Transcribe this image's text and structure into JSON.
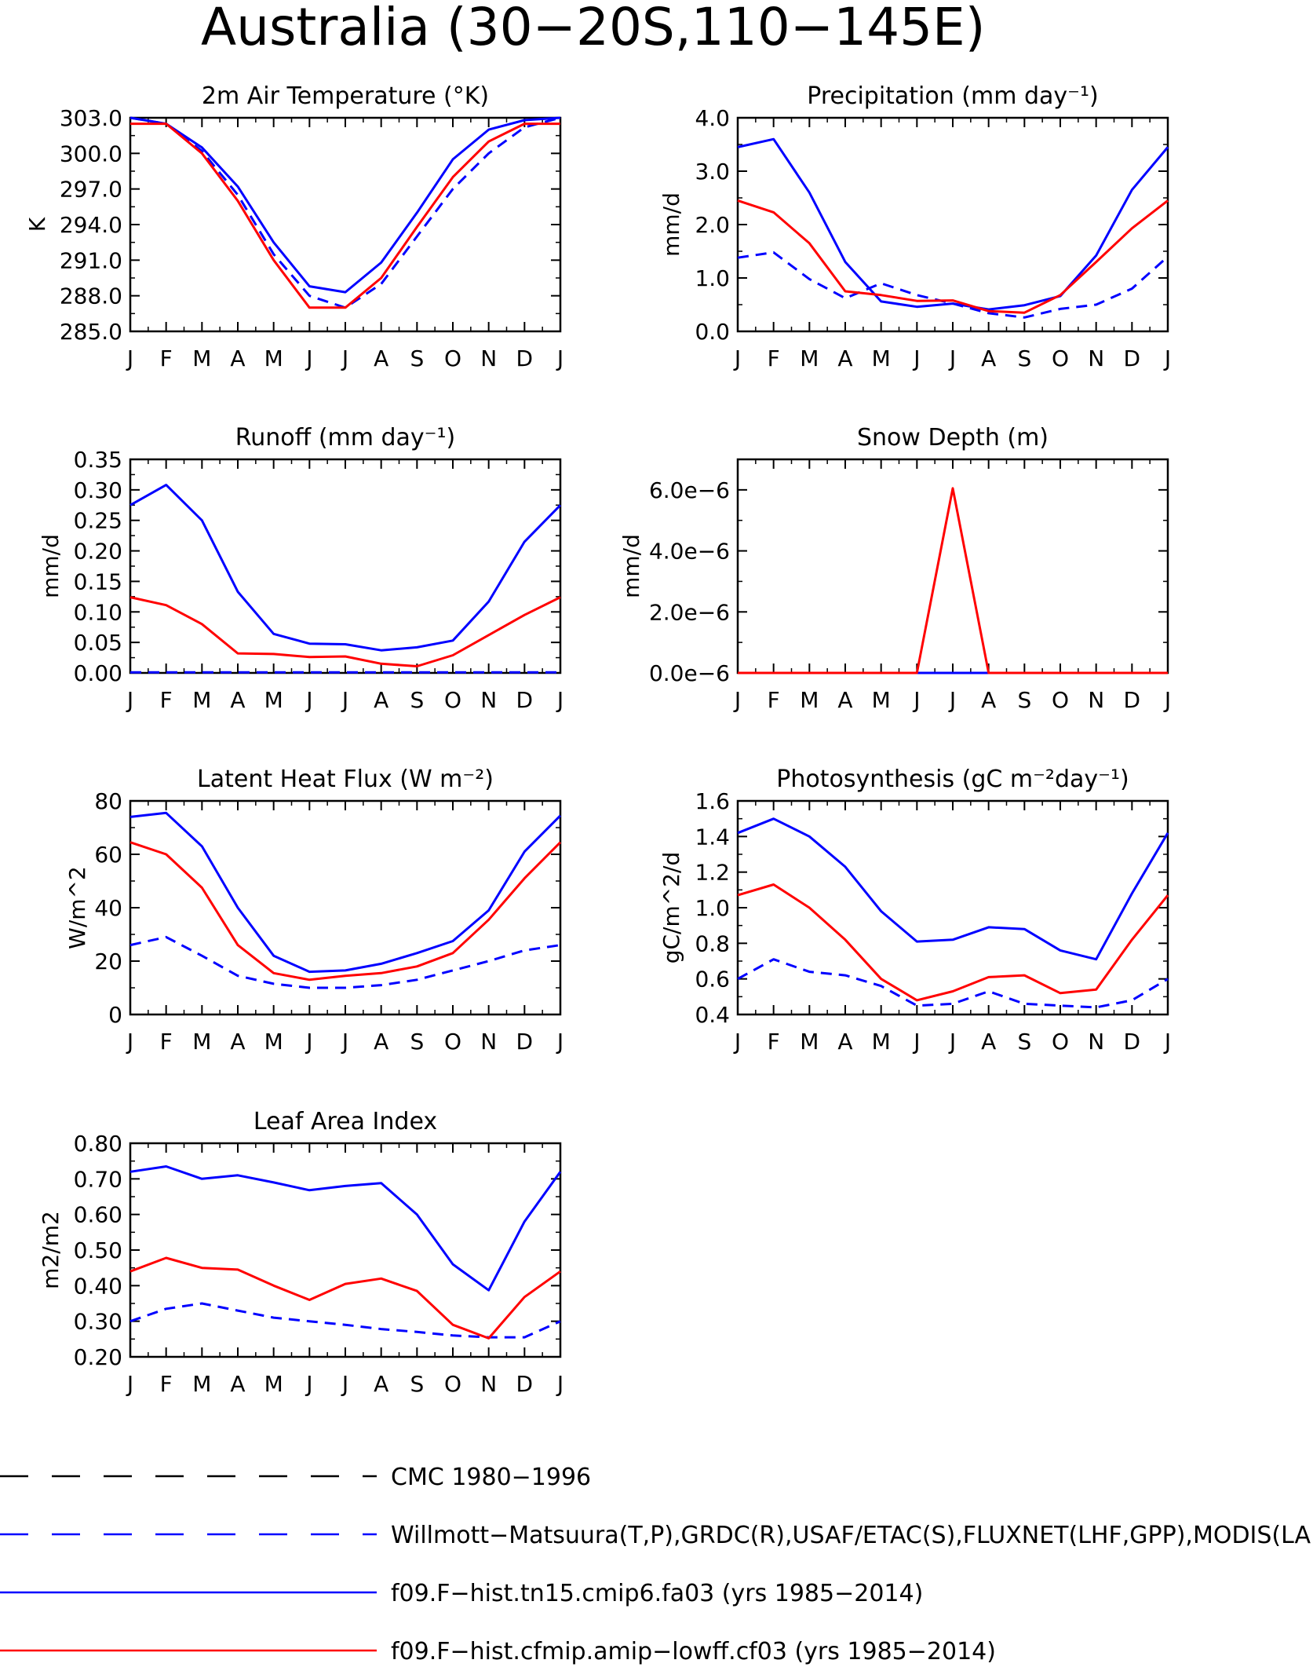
{
  "page_title": "Australia (30−20S,110−145E)",
  "months": [
    "J",
    "F",
    "M",
    "A",
    "M",
    "J",
    "J",
    "A",
    "S",
    "O",
    "N",
    "D",
    "J"
  ],
  "colors": {
    "obs": "#0000ff",
    "case1": "#0000ff",
    "case2": "#ff0000",
    "cmc": "#000000",
    "axis": "#000000"
  },
  "legend": [
    {
      "label": "CMC 1980−1996",
      "color": "#000000",
      "style": "dashed"
    },
    {
      "label": "Willmott−Matsuura(T,P),GRDC(R),USAF/ETAC(S),FLUXNET(LHF,GPP),MODIS(LAI)",
      "color": "#0000ff",
      "style": "dashed"
    },
    {
      "label": "f09.F−hist.tn15.cmip6.fa03 (yrs 1985−2014)",
      "color": "#0000ff",
      "style": "solid"
    },
    {
      "label": "f09.F−hist.cfmip.amip−lowff.cf03 (yrs 1985−2014)",
      "color": "#ff0000",
      "style": "solid"
    }
  ],
  "chart_data": [
    {
      "type": "line",
      "title": "2m Air Temperature (°K)",
      "ylabel": "K",
      "ylim": [
        285.0,
        303.0
      ],
      "yticks": [
        285.0,
        288.0,
        291.0,
        294.0,
        297.0,
        300.0,
        303.0
      ],
      "ytick_labels": [
        "285.0",
        "288.0",
        "291.0",
        "294.0",
        "297.0",
        "300.0",
        "303.0"
      ],
      "x": [
        "J",
        "F",
        "M",
        "A",
        "M",
        "J",
        "J",
        "A",
        "S",
        "O",
        "N",
        "D",
        "J"
      ],
      "series": [
        {
          "values": [
            303.0,
            302.5,
            300.2,
            296.5,
            291.5,
            288.0,
            287.0,
            289.0,
            293.0,
            297.0,
            300.0,
            302.2,
            303.0
          ],
          "color": "#0000ff",
          "style": "dashed"
        },
        {
          "values": [
            303.0,
            302.5,
            300.5,
            297.2,
            292.5,
            288.8,
            288.3,
            290.8,
            295.0,
            299.5,
            302.0,
            302.8,
            303.0
          ],
          "color": "#0000ff",
          "style": "solid"
        },
        {
          "values": [
            302.5,
            302.5,
            300.0,
            296.0,
            291.0,
            287.0,
            287.0,
            289.5,
            293.8,
            298.0,
            301.0,
            302.5,
            302.5
          ],
          "color": "#ff0000",
          "style": "solid"
        }
      ]
    },
    {
      "type": "line",
      "title": "Precipitation (mm day⁻¹)",
      "ylabel": "mm/d",
      "ylim": [
        0.0,
        4.0
      ],
      "yticks": [
        0.0,
        1.0,
        2.0,
        3.0,
        4.0
      ],
      "ytick_labels": [
        "0.0",
        "1.0",
        "2.0",
        "3.0",
        "4.0"
      ],
      "x": [
        "J",
        "F",
        "M",
        "A",
        "M",
        "J",
        "J",
        "A",
        "S",
        "O",
        "N",
        "D",
        "J"
      ],
      "series": [
        {
          "values": [
            1.38,
            1.48,
            0.98,
            0.62,
            0.9,
            0.68,
            0.52,
            0.34,
            0.26,
            0.42,
            0.5,
            0.8,
            1.4
          ],
          "color": "#0000ff",
          "style": "dashed"
        },
        {
          "values": [
            3.45,
            3.6,
            2.6,
            1.3,
            0.56,
            0.46,
            0.52,
            0.41,
            0.49,
            0.66,
            1.42,
            2.65,
            3.45
          ],
          "color": "#0000ff",
          "style": "solid"
        },
        {
          "values": [
            2.45,
            2.23,
            1.65,
            0.75,
            0.68,
            0.57,
            0.58,
            0.38,
            0.35,
            0.68,
            1.3,
            1.93,
            2.45
          ],
          "color": "#ff0000",
          "style": "solid"
        }
      ]
    },
    {
      "type": "line",
      "title": "Runoff (mm day⁻¹)",
      "ylabel": "mm/d",
      "ylim": [
        0.0,
        0.35
      ],
      "yticks": [
        0.0,
        0.05,
        0.1,
        0.15,
        0.2,
        0.25,
        0.3,
        0.35
      ],
      "ytick_labels": [
        "0.00",
        "0.05",
        "0.10",
        "0.15",
        "0.20",
        "0.25",
        "0.30",
        "0.35"
      ],
      "x": [
        "J",
        "F",
        "M",
        "A",
        "M",
        "J",
        "J",
        "A",
        "S",
        "O",
        "N",
        "D",
        "J"
      ],
      "series": [
        {
          "values": [
            0.001,
            0.001,
            0.001,
            0.001,
            0.001,
            0.001,
            0.001,
            0.001,
            0.001,
            0.001,
            0.001,
            0.001,
            0.001
          ],
          "color": "#0000ff",
          "style": "dashed"
        },
        {
          "values": [
            0.275,
            0.308,
            0.25,
            0.133,
            0.064,
            0.048,
            0.047,
            0.037,
            0.042,
            0.053,
            0.117,
            0.215,
            0.275
          ],
          "color": "#0000ff",
          "style": "solid"
        },
        {
          "values": [
            0.124,
            0.111,
            0.08,
            0.032,
            0.031,
            0.026,
            0.027,
            0.015,
            0.011,
            0.029,
            0.062,
            0.095,
            0.124
          ],
          "color": "#ff0000",
          "style": "solid"
        }
      ]
    },
    {
      "type": "line",
      "title": "Snow Depth (m)",
      "ylabel": "mm/d",
      "ylim": [
        0.0,
        7e-06
      ],
      "yticks": [
        0.0,
        2e-06,
        4e-06,
        6e-06
      ],
      "ytick_labels": [
        "0.0e−6",
        "2.0e−6",
        "4.0e−6",
        "6.0e−6"
      ],
      "x": [
        "J",
        "F",
        "M",
        "A",
        "M",
        "J",
        "J",
        "A",
        "S",
        "O",
        "N",
        "D",
        "J"
      ],
      "series": [
        {
          "values": [
            0,
            0,
            0,
            0,
            0,
            0,
            0,
            0,
            0,
            0,
            0,
            0,
            0
          ],
          "color": "#0000ff",
          "style": "dashed"
        },
        {
          "values": [
            0,
            0,
            0,
            0,
            0,
            0,
            0,
            0,
            0,
            0,
            0,
            0,
            0
          ],
          "color": "#0000ff",
          "style": "solid"
        },
        {
          "values": [
            0,
            0,
            0,
            0,
            0,
            0,
            6.05e-06,
            0,
            0,
            0,
            0,
            0,
            0
          ],
          "color": "#ff0000",
          "style": "solid"
        }
      ]
    },
    {
      "type": "line",
      "title": "Latent Heat Flux (W m⁻²)",
      "ylabel": "W/m^2",
      "ylim": [
        0,
        80
      ],
      "yticks": [
        0,
        20,
        40,
        60,
        80
      ],
      "ytick_labels": [
        "0",
        "20",
        "40",
        "60",
        "80"
      ],
      "x": [
        "J",
        "F",
        "M",
        "A",
        "M",
        "J",
        "J",
        "A",
        "S",
        "O",
        "N",
        "D",
        "J"
      ],
      "series": [
        {
          "values": [
            26,
            29,
            22,
            14.5,
            11.5,
            10,
            10,
            11,
            13,
            16.5,
            20,
            24,
            26
          ],
          "color": "#0000ff",
          "style": "dashed"
        },
        {
          "values": [
            74,
            75.5,
            63,
            40,
            22,
            16,
            16.5,
            19,
            23,
            27.5,
            39,
            61,
            74.5
          ],
          "color": "#0000ff",
          "style": "solid"
        },
        {
          "values": [
            64.5,
            60,
            47.5,
            26,
            15.5,
            13,
            14.5,
            15.5,
            18,
            23,
            35.5,
            51,
            64.5
          ],
          "color": "#ff0000",
          "style": "solid"
        }
      ]
    },
    {
      "type": "line",
      "title": "Photosynthesis (gC m⁻²day⁻¹)",
      "ylabel": "gC/m^2/d",
      "ylim": [
        0.4,
        1.6
      ],
      "yticks": [
        0.4,
        0.6,
        0.8,
        1.0,
        1.2,
        1.4,
        1.6
      ],
      "ytick_labels": [
        "0.4",
        "0.6",
        "0.8",
        "1.0",
        "1.2",
        "1.4",
        "1.6"
      ],
      "x": [
        "J",
        "F",
        "M",
        "A",
        "M",
        "J",
        "J",
        "A",
        "S",
        "O",
        "N",
        "D",
        "J"
      ],
      "series": [
        {
          "values": [
            0.6,
            0.71,
            0.64,
            0.62,
            0.56,
            0.45,
            0.46,
            0.53,
            0.46,
            0.45,
            0.44,
            0.48,
            0.6
          ],
          "color": "#0000ff",
          "style": "dashed"
        },
        {
          "values": [
            1.42,
            1.5,
            1.4,
            1.23,
            0.98,
            0.81,
            0.82,
            0.89,
            0.88,
            0.76,
            0.71,
            1.08,
            1.42
          ],
          "color": "#0000ff",
          "style": "solid"
        },
        {
          "values": [
            1.07,
            1.13,
            1.0,
            0.82,
            0.6,
            0.48,
            0.53,
            0.61,
            0.62,
            0.52,
            0.54,
            0.82,
            1.07
          ],
          "color": "#ff0000",
          "style": "solid"
        }
      ]
    },
    {
      "type": "line",
      "title": "Leaf Area Index",
      "ylabel": "m2/m2",
      "ylim": [
        0.2,
        0.8
      ],
      "yticks": [
        0.2,
        0.3,
        0.4,
        0.5,
        0.6,
        0.7,
        0.8
      ],
      "ytick_labels": [
        "0.20",
        "0.30",
        "0.40",
        "0.50",
        "0.60",
        "0.70",
        "0.80"
      ],
      "x": [
        "J",
        "F",
        "M",
        "A",
        "M",
        "J",
        "J",
        "A",
        "S",
        "O",
        "N",
        "D",
        "J"
      ],
      "series": [
        {
          "values": [
            0.3,
            0.335,
            0.35,
            0.33,
            0.31,
            0.3,
            0.29,
            0.278,
            0.27,
            0.26,
            0.255,
            0.255,
            0.3
          ],
          "color": "#0000ff",
          "style": "dashed"
        },
        {
          "values": [
            0.72,
            0.735,
            0.7,
            0.71,
            0.69,
            0.668,
            0.68,
            0.688,
            0.6,
            0.46,
            0.387,
            0.58,
            0.72
          ],
          "color": "#0000ff",
          "style": "solid"
        },
        {
          "values": [
            0.44,
            0.478,
            0.45,
            0.445,
            0.4,
            0.36,
            0.405,
            0.42,
            0.385,
            0.29,
            0.252,
            0.368,
            0.44
          ],
          "color": "#ff0000",
          "style": "solid"
        }
      ]
    }
  ]
}
